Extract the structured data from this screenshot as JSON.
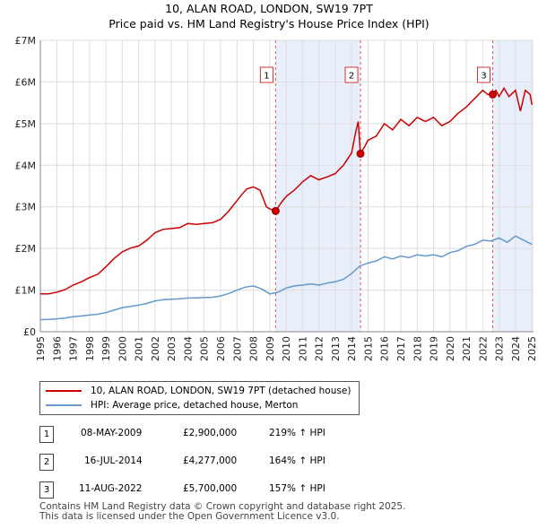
{
  "chart_data": {
    "type": "line",
    "title": "10, ALAN ROAD, LONDON, SW19 7PT",
    "subtitle": "Price paid vs. HM Land Registry's House Price Index (HPI)",
    "xlim": [
      1995,
      2025.1
    ],
    "ylim": [
      0,
      7000000
    ],
    "y_ticks": [
      {
        "value": 0,
        "label": "£0"
      },
      {
        "value": 1000000,
        "label": "£1M"
      },
      {
        "value": 2000000,
        "label": "£2M"
      },
      {
        "value": 3000000,
        "label": "£3M"
      },
      {
        "value": 4000000,
        "label": "£4M"
      },
      {
        "value": 5000000,
        "label": "£5M"
      },
      {
        "value": 6000000,
        "label": "£6M"
      },
      {
        "value": 7000000,
        "label": "£7M"
      }
    ],
    "x_ticks": [
      "1995",
      "1996",
      "1997",
      "1998",
      "1999",
      "2000",
      "2001",
      "2002",
      "2003",
      "2004",
      "2005",
      "2006",
      "2007",
      "2008",
      "2009",
      "2010",
      "2011",
      "2012",
      "2013",
      "2014",
      "2015",
      "2016",
      "2017",
      "2018",
      "2019",
      "2020",
      "2021",
      "2022",
      "2023",
      "2024",
      "2025"
    ],
    "grid": true,
    "series": [
      {
        "name": "10, ALAN ROAD, LONDON, SW19 7PT (detached house)",
        "color": "#cc0000",
        "x": [
          1995.0,
          1995.5,
          1996.0,
          1996.5,
          1997.0,
          1997.5,
          1998.0,
          1998.5,
          1999.0,
          1999.5,
          2000.0,
          2000.5,
          2001.0,
          2001.5,
          2002.0,
          2002.5,
          2003.0,
          2003.5,
          2004.0,
          2004.5,
          2005.0,
          2005.5,
          2006.0,
          2006.5,
          2007.0,
          2007.3,
          2007.6,
          2008.0,
          2008.4,
          2008.8,
          2009.0,
          2009.36,
          2009.7,
          2010.0,
          2010.5,
          2011.0,
          2011.5,
          2012.0,
          2012.5,
          2013.0,
          2013.5,
          2014.0,
          2014.25,
          2014.4,
          2014.54,
          2014.8,
          2015.0,
          2015.5,
          2016.0,
          2016.5,
          2017.0,
          2017.5,
          2018.0,
          2018.5,
          2019.0,
          2019.5,
          2020.0,
          2020.5,
          2021.0,
          2021.5,
          2022.0,
          2022.3,
          2022.61,
          2022.8,
          2023.0,
          2023.3,
          2023.6,
          2024.0,
          2024.3,
          2024.6,
          2024.9,
          2025.0
        ],
        "y": [
          910000,
          910000,
          950000,
          1010000,
          1120000,
          1200000,
          1300000,
          1380000,
          1560000,
          1760000,
          1920000,
          2010000,
          2060000,
          2200000,
          2380000,
          2460000,
          2480000,
          2500000,
          2600000,
          2580000,
          2600000,
          2620000,
          2700000,
          2900000,
          3150000,
          3300000,
          3430000,
          3480000,
          3400000,
          3000000,
          2950000,
          2900000,
          3100000,
          3250000,
          3400000,
          3600000,
          3750000,
          3650000,
          3720000,
          3800000,
          4000000,
          4300000,
          4800000,
          5050000,
          4277000,
          4450000,
          4600000,
          4700000,
          5000000,
          4850000,
          5100000,
          4950000,
          5150000,
          5050000,
          5150000,
          4950000,
          5050000,
          5250000,
          5400000,
          5600000,
          5800000,
          5700000,
          5700000,
          5800000,
          5650000,
          5850000,
          5650000,
          5800000,
          5300000,
          5800000,
          5700000,
          5450000
        ]
      },
      {
        "name": "HPI: Average price, detached house, Merton",
        "color": "#6699cc",
        "x": [
          1995.0,
          1995.5,
          1996.0,
          1996.5,
          1997.0,
          1997.5,
          1998.0,
          1998.5,
          1999.0,
          1999.5,
          2000.0,
          2000.5,
          2001.0,
          2001.5,
          2002.0,
          2002.5,
          2003.0,
          2003.5,
          2004.0,
          2004.5,
          2005.0,
          2005.5,
          2006.0,
          2006.5,
          2007.0,
          2007.5,
          2008.0,
          2008.5,
          2009.0,
          2009.5,
          2010.0,
          2010.5,
          2011.0,
          2011.5,
          2012.0,
          2012.5,
          2013.0,
          2013.5,
          2014.0,
          2014.5,
          2015.0,
          2015.5,
          2016.0,
          2016.5,
          2017.0,
          2017.5,
          2018.0,
          2018.5,
          2019.0,
          2019.5,
          2020.0,
          2020.5,
          2021.0,
          2021.5,
          2022.0,
          2022.5,
          2023.0,
          2023.5,
          2024.0,
          2024.5,
          2025.0
        ],
        "y": [
          290000,
          295000,
          310000,
          330000,
          360000,
          380000,
          400000,
          420000,
          460000,
          520000,
          580000,
          610000,
          640000,
          680000,
          740000,
          770000,
          780000,
          790000,
          810000,
          815000,
          820000,
          830000,
          860000,
          920000,
          1000000,
          1070000,
          1100000,
          1030000,
          910000,
          950000,
          1050000,
          1100000,
          1120000,
          1150000,
          1120000,
          1170000,
          1200000,
          1260000,
          1400000,
          1580000,
          1650000,
          1700000,
          1800000,
          1750000,
          1820000,
          1780000,
          1850000,
          1820000,
          1850000,
          1800000,
          1900000,
          1950000,
          2050000,
          2100000,
          2200000,
          2180000,
          2250000,
          2150000,
          2300000,
          2200000,
          2100000
        ]
      }
    ],
    "shaded_regions": [
      [
        2009.36,
        2014.54
      ],
      [
        2022.61,
        2025.1
      ]
    ],
    "sales": [
      {
        "label": "1",
        "x": 2009.36,
        "y": 2900000,
        "date": "08-MAY-2009",
        "price": "£2,900,000",
        "hpi": "219% ↑ HPI"
      },
      {
        "label": "2",
        "x": 2014.54,
        "y": 4277000,
        "date": "16-JUL-2014",
        "price": "£4,277,000",
        "hpi": "164% ↑ HPI"
      },
      {
        "label": "3",
        "x": 2022.61,
        "y": 5700000,
        "date": "11-AUG-2022",
        "price": "£5,700,000",
        "hpi": "157% ↑ HPI"
      }
    ]
  },
  "legend": {
    "items": [
      {
        "label": "10, ALAN ROAD, LONDON, SW19 7PT (detached house)",
        "color": "#cc0000"
      },
      {
        "label": "HPI: Average price, detached house, Merton",
        "color": "#6699cc"
      }
    ]
  },
  "footer": {
    "line1": "Contains HM Land Registry data © Crown copyright and database right 2025.",
    "line2": "This data is licensed under the Open Government Licence v3.0."
  }
}
